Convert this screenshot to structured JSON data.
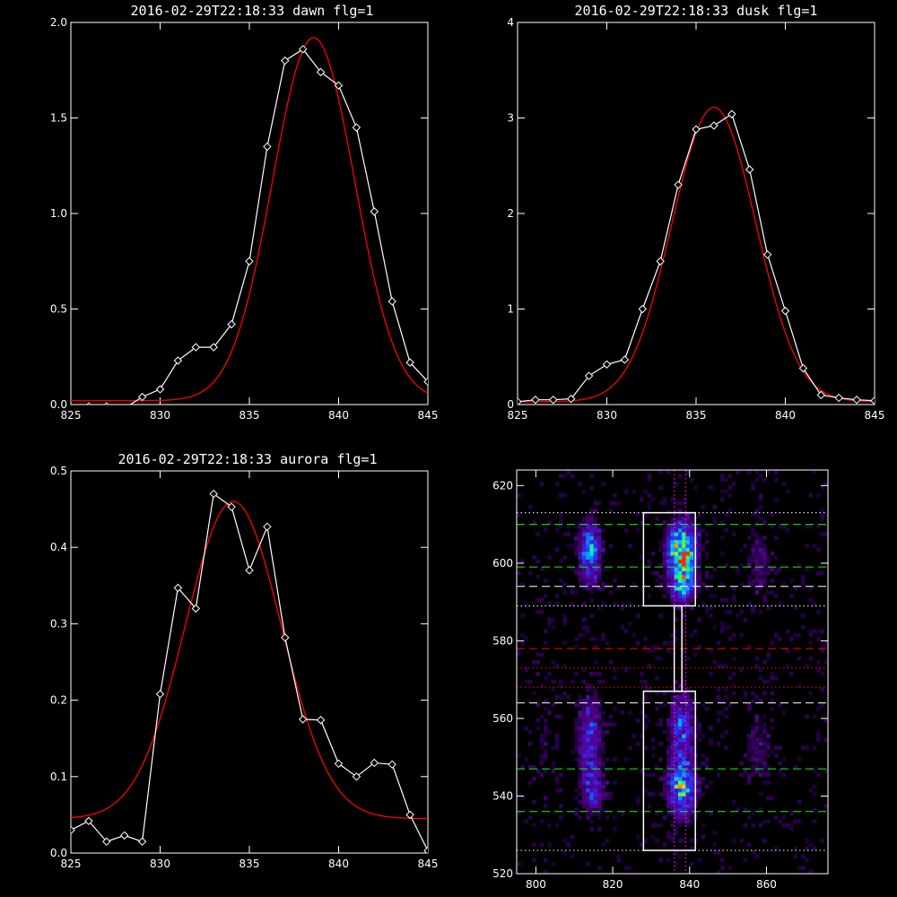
{
  "chart_data": [
    {
      "type": "line",
      "title": "2016-02-29T22:18:33 dawn flg=1",
      "xlim": [
        825,
        845
      ],
      "ylim": [
        0,
        2.0
      ],
      "xticks": [
        825,
        830,
        835,
        840,
        845
      ],
      "yticks": [
        0.0,
        0.5,
        1.0,
        1.5,
        2.0
      ],
      "ytick_labels": [
        "0.0",
        "0.5",
        "1.0",
        "1.5",
        "2.0"
      ],
      "series": [
        {
          "color": "#ffffff",
          "marker": "diamond",
          "x": [
            826,
            827,
            828,
            829,
            830,
            831,
            832,
            833,
            834,
            835,
            836,
            837,
            838,
            839,
            840,
            841,
            842,
            843,
            844,
            845
          ],
          "y": [
            -0.01,
            -0.01,
            -0.02,
            0.04,
            0.08,
            0.23,
            0.3,
            0.3,
            0.42,
            0.75,
            1.35,
            1.8,
            1.86,
            1.74,
            1.67,
            1.45,
            1.01,
            0.54,
            0.22,
            0.12
          ]
        },
        {
          "color": "#ff0000",
          "fit": "gaussian",
          "amp": 1.9,
          "center": 838.6,
          "sigma": 2.3,
          "baseline": 0.02
        }
      ]
    },
    {
      "type": "line",
      "title": "2016-02-29T22:18:33 dusk flg=1",
      "xlim": [
        825,
        845
      ],
      "ylim": [
        0,
        4
      ],
      "xticks": [
        825,
        830,
        835,
        840,
        845
      ],
      "yticks": [
        0,
        1,
        2,
        3,
        4
      ],
      "ytick_labels": [
        "0",
        "1",
        "2",
        "3",
        "4"
      ],
      "series": [
        {
          "color": "#ffffff",
          "marker": "diamond",
          "x": [
            825,
            826,
            827,
            828,
            829,
            830,
            831,
            832,
            833,
            834,
            835,
            836,
            837,
            838,
            839,
            840,
            841,
            842,
            843,
            844,
            845
          ],
          "y": [
            0.03,
            0.05,
            0.05,
            0.06,
            0.3,
            0.42,
            0.47,
            1.0,
            1.5,
            2.3,
            2.88,
            2.92,
            3.04,
            2.46,
            1.57,
            0.98,
            0.38,
            0.1,
            0.07,
            0.05,
            0.04
          ]
        },
        {
          "color": "#ff0000",
          "fit": "gaussian",
          "amp": 3.08,
          "center": 836.0,
          "sigma": 2.35,
          "baseline": 0.03
        }
      ]
    },
    {
      "type": "line",
      "title": "2016-02-29T22:18:33 aurora flg=1",
      "xlim": [
        825,
        845
      ],
      "ylim": [
        0,
        0.5
      ],
      "xticks": [
        825,
        830,
        835,
        840,
        845
      ],
      "yticks": [
        0.0,
        0.1,
        0.2,
        0.3,
        0.4,
        0.5
      ],
      "ytick_labels": [
        "0.0",
        "0.1",
        "0.2",
        "0.3",
        "0.4",
        "0.5"
      ],
      "series": [
        {
          "color": "#ffffff",
          "marker": "diamond",
          "x": [
            825,
            826,
            827,
            828,
            829,
            830,
            831,
            832,
            833,
            834,
            835,
            836,
            837,
            838,
            839,
            840,
            841,
            842,
            843,
            844,
            845
          ],
          "y": [
            0.03,
            0.042,
            0.015,
            0.023,
            0.015,
            0.208,
            0.347,
            0.32,
            0.47,
            0.453,
            0.37,
            0.427,
            0.282,
            0.175,
            0.174,
            0.117,
            0.1,
            0.118,
            0.116,
            0.05,
            0.003
          ]
        },
        {
          "color": "#ff0000",
          "fit": "gaussian",
          "amp": 0.415,
          "center": 834.1,
          "sigma": 2.7,
          "baseline": 0.045
        }
      ]
    },
    {
      "type": "heatmap",
      "title": "",
      "xlim": [
        795,
        876
      ],
      "ylim": [
        520,
        624
      ],
      "xticks": [
        800,
        820,
        840,
        860
      ],
      "yticks": [
        520,
        540,
        560,
        580,
        600,
        620
      ],
      "colormap": "rainbow-on-black",
      "blobs": [
        {
          "x": 814,
          "y": 603,
          "sx": 2.0,
          "sy": 5.5,
          "amp": 0.6
        },
        {
          "x": 838,
          "y": 603,
          "sx": 2.6,
          "sy": 5.0,
          "amp": 1.0
        },
        {
          "x": 838,
          "y": 594,
          "sx": 2.3,
          "sy": 3.0,
          "amp": 0.5
        },
        {
          "x": 814,
          "y": 555,
          "sx": 2.3,
          "sy": 8.0,
          "amp": 0.4
        },
        {
          "x": 815,
          "y": 541,
          "sx": 2.0,
          "sy": 4.0,
          "amp": 0.35
        },
        {
          "x": 838,
          "y": 558,
          "sx": 2.3,
          "sy": 6.0,
          "amp": 0.45
        },
        {
          "x": 838,
          "y": 542,
          "sx": 2.5,
          "sy": 5.0,
          "amp": 0.7
        },
        {
          "x": 858,
          "y": 600,
          "sx": 2.5,
          "sy": 6.0,
          "amp": 0.18
        },
        {
          "x": 858,
          "y": 552,
          "sx": 2.5,
          "sy": 8.0,
          "amp": 0.16
        },
        {
          "x": 802,
          "y": 556,
          "sx": 2.0,
          "sy": 10.0,
          "amp": 0.1
        }
      ],
      "hlines": [
        {
          "y": 610,
          "color": "#00ff00",
          "style": "dashed"
        },
        {
          "y": 599,
          "color": "#00ff00",
          "style": "dashed"
        },
        {
          "y": 547,
          "color": "#00ff00",
          "style": "dashed"
        },
        {
          "y": 536,
          "color": "#00ff00",
          "style": "dashed"
        },
        {
          "y": 594,
          "color": "#ffffff",
          "style": "dashed"
        },
        {
          "y": 564,
          "color": "#ffffff",
          "style": "dashed"
        },
        {
          "y": 613,
          "color": "#ffffff",
          "style": "dotted"
        },
        {
          "y": 589,
          "color": "#ffffff",
          "style": "dotted"
        },
        {
          "y": 526,
          "color": "#ffffff",
          "style": "dotted"
        },
        {
          "y": 578,
          "color": "#ff0000",
          "style": "dashed"
        },
        {
          "y": 573,
          "color": "#ff0000",
          "style": "dotted"
        },
        {
          "y": 568,
          "color": "#ff0000",
          "style": "dotted"
        }
      ],
      "vlines": [
        {
          "x": 836,
          "color": "#ff00ff",
          "style": "dotted"
        },
        {
          "x": 839,
          "color": "#ff00ff",
          "style": "dotted"
        }
      ],
      "boxes": [
        {
          "x0": 828,
          "x1": 841.5,
          "y0": 589,
          "y1": 613
        },
        {
          "x0": 828,
          "x1": 841.5,
          "y0": 526,
          "y1": 567
        },
        {
          "x0": 836,
          "x1": 838,
          "y0": 567,
          "y1": 589
        }
      ]
    }
  ]
}
